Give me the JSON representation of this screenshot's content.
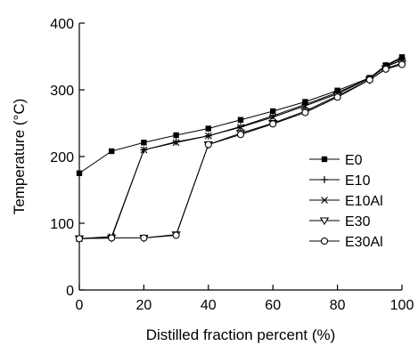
{
  "chart_data": {
    "type": "line",
    "xlabel": "Distilled fraction percent (%)",
    "ylabel": "Temperature (°C)",
    "xlim": [
      0,
      100
    ],
    "ylim": [
      0,
      400
    ],
    "xticks": [
      "0",
      "20",
      "40",
      "60",
      "80",
      "100"
    ],
    "yticks": [
      "0",
      "100",
      "200",
      "300",
      "400"
    ],
    "grid": false,
    "legend_position": "right",
    "x": [
      0,
      10,
      20,
      30,
      40,
      50,
      60,
      70,
      80,
      90,
      95,
      100
    ],
    "series": [
      {
        "name": "E0",
        "marker": "filled-square",
        "values": [
          175,
          208,
          221,
          232,
          242,
          255,
          268,
          282,
          299,
          318,
          337,
          349
        ]
      },
      {
        "name": "E10",
        "marker": "plus",
        "values": [
          77,
          78,
          210,
          222,
          231,
          245,
          261,
          278,
          296,
          317,
          336,
          347
        ]
      },
      {
        "name": "E10Al",
        "marker": "cross",
        "values": [
          77,
          80,
          210,
          221,
          231,
          244,
          259,
          276,
          294,
          317,
          335,
          344
        ]
      },
      {
        "name": "E30",
        "marker": "open-triangle-down",
        "values": [
          77,
          78,
          78,
          83,
          218,
          235,
          250,
          268,
          291,
          315,
          332,
          340
        ]
      },
      {
        "name": "E30Al",
        "marker": "open-circle",
        "values": [
          77,
          78,
          78,
          82,
          218,
          233,
          249,
          266,
          289,
          315,
          331,
          338
        ]
      }
    ]
  }
}
